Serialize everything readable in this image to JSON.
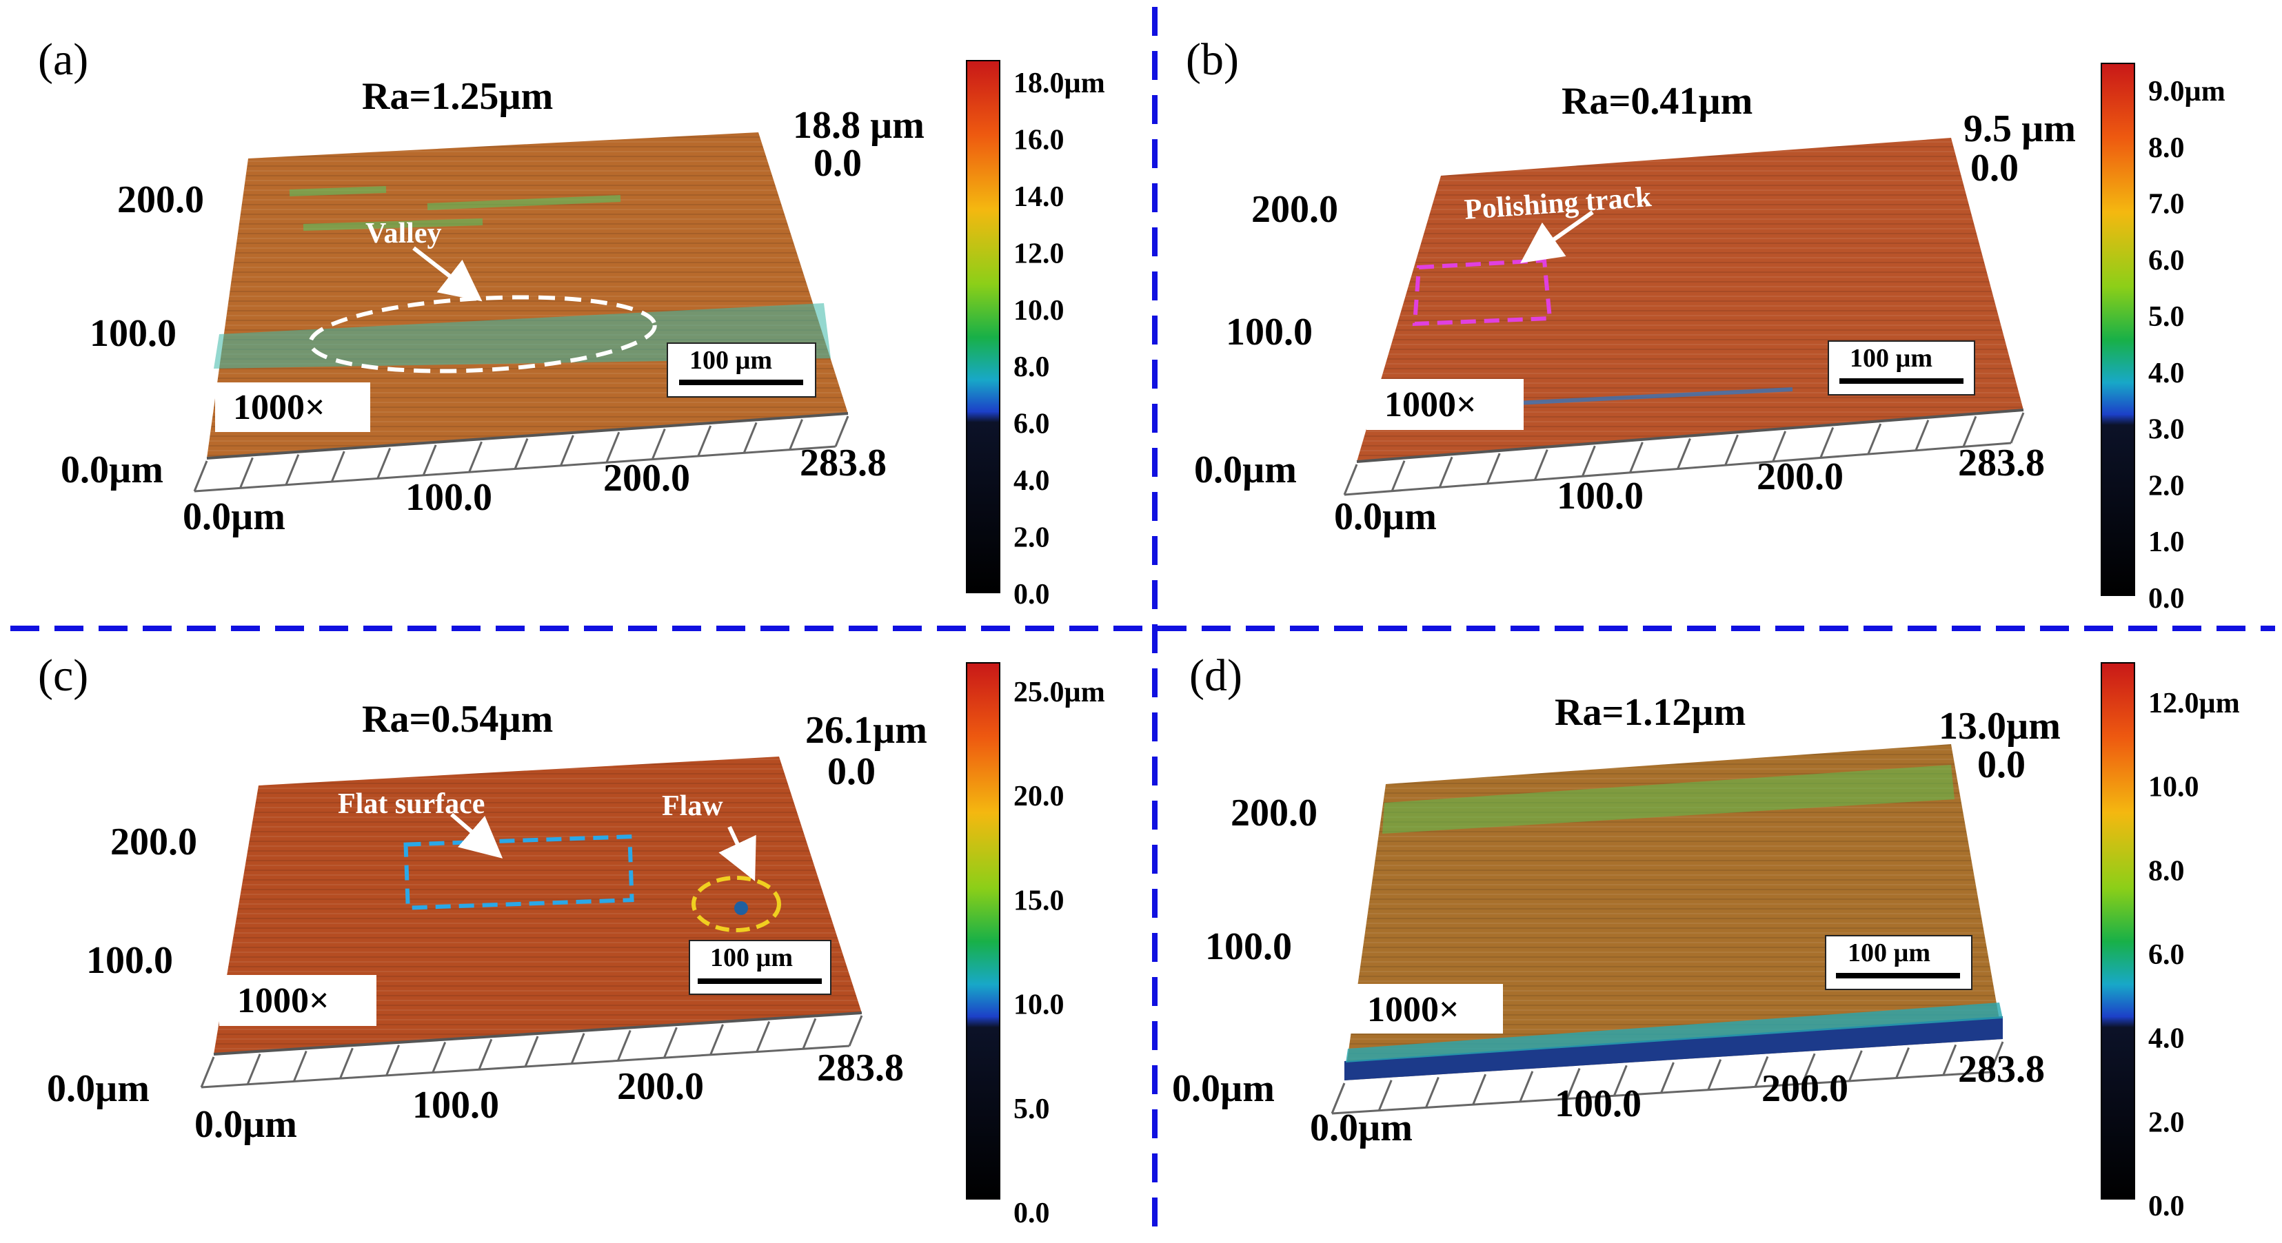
{
  "divider_color": "#1010e0",
  "panels": [
    {
      "letter": "(a)",
      "ra": "Ra=1.25µm",
      "z_top": "18.8 µm",
      "z_zero": "0.0",
      "y_ticks": [
        "200.0",
        "100.0",
        "0.0µm"
      ],
      "x_ticks": [
        "0.0µm",
        "100.0",
        "200.0",
        "283.8"
      ],
      "magnification": "1000×",
      "scale_bar": "100 µm",
      "colorbar_ticks": [
        "18.0µm",
        "16.0",
        "14.0",
        "12.0",
        "10.0",
        "8.0",
        "6.0",
        "4.0",
        "2.0",
        "0.0"
      ],
      "surface_color": "#b86a2c",
      "annotations": [
        {
          "label": "Valley",
          "marker": "ellipse",
          "color": "#ffffff"
        }
      ]
    },
    {
      "letter": "(b)",
      "ra": "Ra=0.41µm",
      "z_top": "9.5 µm",
      "z_zero": "0.0",
      "y_ticks": [
        "200.0",
        "100.0",
        "0.0µm"
      ],
      "x_ticks": [
        "0.0µm",
        "100.0",
        "200.0",
        "283.8"
      ],
      "magnification": "1000×",
      "scale_bar": "100 µm",
      "colorbar_ticks": [
        "9.0µm",
        "8.0",
        "7.0",
        "6.0",
        "5.0",
        "4.0",
        "3.0",
        "2.0",
        "1.0",
        "0.0"
      ],
      "surface_color": "#b9542a",
      "annotations": [
        {
          "label": "Polishing track",
          "marker": "rect",
          "color": "#e040e0"
        }
      ]
    },
    {
      "letter": "(c)",
      "ra": "Ra=0.54µm",
      "z_top": "26.1µm",
      "z_zero": "0.0",
      "y_ticks": [
        "200.0",
        "100.0",
        "0.0µm"
      ],
      "x_ticks": [
        "0.0µm",
        "100.0",
        "200.0",
        "283.8"
      ],
      "magnification": "1000×",
      "scale_bar": "100 µm",
      "colorbar_ticks": [
        "25.0µm",
        "20.0",
        "15.0",
        "10.0",
        "5.0",
        "0.0"
      ],
      "surface_color": "#b54d22",
      "annotations": [
        {
          "label": "Flat surface",
          "marker": "rect",
          "color": "#2aa8e8"
        },
        {
          "label": "Flaw",
          "marker": "ellipse",
          "color": "#f0d020"
        }
      ]
    },
    {
      "letter": "(d)",
      "ra": "Ra=1.12µm",
      "z_top": "13.0µm",
      "z_zero": "0.0",
      "y_ticks": [
        "200.0",
        "100.0",
        "0.0µm"
      ],
      "x_ticks": [
        "0.0µm",
        "100.0",
        "200.0",
        "283.8"
      ],
      "magnification": "1000×",
      "scale_bar": "100 µm",
      "colorbar_ticks": [
        "12.0µm",
        "10.0",
        "8.0",
        "6.0",
        "4.0",
        "2.0",
        "0.0"
      ],
      "surface_color": "#a8702c",
      "annotations": []
    }
  ]
}
